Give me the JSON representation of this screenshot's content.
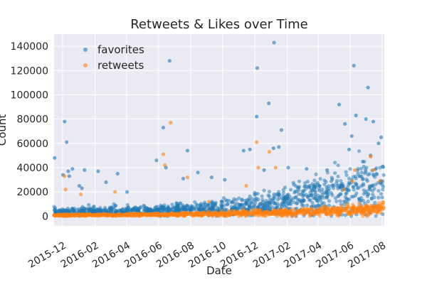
{
  "chart_data": {
    "type": "scatter",
    "title": "Retweets & Likes over Time",
    "xlabel": "Date",
    "ylabel": "Count",
    "xlim": [
      "2015-11-15",
      "2017-08-05"
    ],
    "ylim": [
      -8000,
      150000
    ],
    "xticks": [
      {
        "date": "2015-12-01",
        "label": "2015-12"
      },
      {
        "date": "2016-02-01",
        "label": "2016-02"
      },
      {
        "date": "2016-04-01",
        "label": "2016-04"
      },
      {
        "date": "2016-06-01",
        "label": "2016-06"
      },
      {
        "date": "2016-08-01",
        "label": "2016-08"
      },
      {
        "date": "2016-10-01",
        "label": "2016-10"
      },
      {
        "date": "2016-12-01",
        "label": "2016-12"
      },
      {
        "date": "2017-02-01",
        "label": "2017-02"
      },
      {
        "date": "2017-04-01",
        "label": "2017-04"
      },
      {
        "date": "2017-06-01",
        "label": "2017-06"
      },
      {
        "date": "2017-08-01",
        "label": "2017-08"
      }
    ],
    "yticks": [
      0,
      20000,
      40000,
      60000,
      80000,
      100000,
      120000,
      140000
    ],
    "grid": true,
    "legend_position": "upper-left",
    "background_color": "#eaeaf2",
    "grid_color": "#ffffff",
    "series": [
      {
        "name": "favorites",
        "color": "#1f77b4",
        "points": [
          [
            "2015-11-16",
            48000
          ],
          [
            "2015-12-02",
            34000
          ],
          [
            "2015-12-05",
            78000
          ],
          [
            "2015-12-09",
            61000
          ],
          [
            "2015-12-12",
            37000
          ],
          [
            "2015-12-14",
            33000
          ],
          [
            "2015-12-20",
            39000
          ],
          [
            "2016-01-02",
            25000
          ],
          [
            "2016-01-07",
            23000
          ],
          [
            "2016-01-12",
            38000
          ],
          [
            "2016-02-07",
            37000
          ],
          [
            "2016-02-22",
            28000
          ],
          [
            "2016-03-15",
            35000
          ],
          [
            "2016-04-02",
            20000
          ],
          [
            "2016-05-28",
            46000
          ],
          [
            "2016-06-10",
            73000
          ],
          [
            "2016-06-15",
            40000
          ],
          [
            "2016-06-22",
            128000
          ],
          [
            "2016-07-18",
            31000
          ],
          [
            "2016-07-26",
            54000
          ],
          [
            "2016-08-15",
            36000
          ],
          [
            "2016-09-10",
            32000
          ],
          [
            "2016-10-05",
            30000
          ],
          [
            "2016-11-10",
            54000
          ],
          [
            "2016-11-22",
            55000
          ],
          [
            "2016-12-06",
            122000
          ],
          [
            "2016-12-05",
            82000
          ],
          [
            "2016-12-19",
            38000
          ],
          [
            "2016-12-28",
            93000
          ],
          [
            "2017-01-07",
            143000
          ],
          [
            "2017-01-06",
            56000
          ],
          [
            "2017-01-16",
            57000
          ],
          [
            "2017-01-21",
            71000
          ],
          [
            "2017-02-03",
            40000
          ],
          [
            "2017-03-10",
            39000
          ],
          [
            "2017-04-18",
            38000
          ],
          [
            "2017-05-11",
            92000
          ],
          [
            "2017-05-22",
            76000
          ],
          [
            "2017-05-30",
            55000
          ],
          [
            "2017-06-04",
            66000
          ],
          [
            "2017-06-08",
            124000
          ],
          [
            "2017-06-12",
            83000
          ],
          [
            "2017-06-25",
            45000
          ],
          [
            "2017-07-01",
            80000
          ],
          [
            "2017-07-05",
            106000
          ],
          [
            "2017-07-10",
            50000
          ],
          [
            "2017-07-15",
            78000
          ],
          [
            "2017-07-25",
            60000
          ],
          [
            "2017-07-30",
            65000
          ],
          [
            "2017-08-02",
            41000
          ]
        ],
        "dense_band": [
          [
            "2015-11-15",
            3500
          ],
          [
            "2016-02-01",
            4000
          ],
          [
            "2016-06-01",
            4500
          ],
          [
            "2016-10-01",
            7000
          ],
          [
            "2016-12-01",
            9000
          ],
          [
            "2017-02-01",
            13000
          ],
          [
            "2017-04-01",
            17000
          ],
          [
            "2017-06-01",
            22000
          ],
          [
            "2017-08-05",
            27000
          ]
        ]
      },
      {
        "name": "retweets",
        "color": "#ff7f0e",
        "points": [
          [
            "2015-12-05",
            33000
          ],
          [
            "2015-12-07",
            22000
          ],
          [
            "2016-01-05",
            18000
          ],
          [
            "2016-03-10",
            20000
          ],
          [
            "2016-06-10",
            51000
          ],
          [
            "2016-06-13",
            42000
          ],
          [
            "2016-06-24",
            77000
          ],
          [
            "2016-07-26",
            32000
          ],
          [
            "2016-09-05",
            12000
          ],
          [
            "2016-11-15",
            25000
          ],
          [
            "2016-12-05",
            61000
          ],
          [
            "2016-12-08",
            40000
          ],
          [
            "2016-12-29",
            53000
          ],
          [
            "2017-01-10",
            40000
          ],
          [
            "2017-05-20",
            22000
          ],
          [
            "2017-06-05",
            29000
          ],
          [
            "2017-06-10",
            38000
          ],
          [
            "2017-07-10",
            49000
          ],
          [
            "2017-07-15",
            38000
          ],
          [
            "2017-07-28",
            29000
          ]
        ],
        "dense_band": [
          [
            "2015-11-15",
            800
          ],
          [
            "2016-02-01",
            1000
          ],
          [
            "2016-06-01",
            1200
          ],
          [
            "2016-10-01",
            2000
          ],
          [
            "2016-12-01",
            2500
          ],
          [
            "2017-02-01",
            3000
          ],
          [
            "2017-04-01",
            3800
          ],
          [
            "2017-06-01",
            4500
          ],
          [
            "2017-08-05",
            6000
          ]
        ]
      }
    ]
  }
}
